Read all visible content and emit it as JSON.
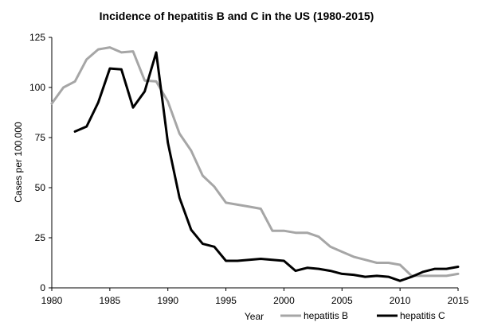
{
  "chart_data": {
    "type": "line",
    "title": "Incidence of hepatitis B and C in the US (1980-2015)",
    "xlabel": "Year",
    "ylabel": "Cases per 100,000",
    "xlim": [
      1980,
      2015
    ],
    "ylim": [
      0,
      125
    ],
    "x_ticks": [
      "1980",
      "1985",
      "1990",
      "1995",
      "2000",
      "2005",
      "2010",
      "2015"
    ],
    "y_ticks": [
      "0",
      "25",
      "50",
      "75",
      "100",
      "125"
    ],
    "grid": false,
    "legend_position": "bottom-right",
    "series": [
      {
        "name": "hepatitis B",
        "color": "#a6a6a6",
        "points": [
          [
            1980,
            92
          ],
          [
            1981,
            100
          ],
          [
            1982,
            103
          ],
          [
            1983,
            114
          ],
          [
            1984,
            119
          ],
          [
            1985,
            120
          ],
          [
            1986,
            117.5
          ],
          [
            1987,
            118
          ],
          [
            1988,
            103.5
          ],
          [
            1989,
            103
          ],
          [
            1990,
            93
          ],
          [
            1991,
            77
          ],
          [
            1992,
            68.5
          ],
          [
            1993,
            56
          ],
          [
            1994,
            50.5
          ],
          [
            1995,
            42.5
          ],
          [
            1996,
            41.5
          ],
          [
            1997,
            40.5
          ],
          [
            1998,
            39.5
          ],
          [
            1999,
            28.5
          ],
          [
            2000,
            28.5
          ],
          [
            2001,
            27.5
          ],
          [
            2002,
            27.5
          ],
          [
            2003,
            25.5
          ],
          [
            2004,
            20.5
          ],
          [
            2005,
            18
          ],
          [
            2006,
            15.5
          ],
          [
            2007,
            14
          ],
          [
            2008,
            12.5
          ],
          [
            2009,
            12.5
          ],
          [
            2010,
            11.5
          ],
          [
            2011,
            6
          ],
          [
            2012,
            6
          ],
          [
            2013,
            6
          ],
          [
            2014,
            6
          ],
          [
            2015,
            7
          ]
        ]
      },
      {
        "name": "hepatitis C",
        "color": "#000000",
        "points": [
          [
            1982,
            78
          ],
          [
            1983,
            80.5
          ],
          [
            1984,
            92.5
          ],
          [
            1985,
            109.5
          ],
          [
            1986,
            109
          ],
          [
            1987,
            90
          ],
          [
            1988,
            98
          ],
          [
            1989,
            117.5
          ],
          [
            1990,
            72.5
          ],
          [
            1991,
            45
          ],
          [
            1992,
            29
          ],
          [
            1993,
            22
          ],
          [
            1994,
            20.5
          ],
          [
            1995,
            13.5
          ],
          [
            1996,
            13.5
          ],
          [
            1997,
            14
          ],
          [
            1998,
            14.5
          ],
          [
            1999,
            14
          ],
          [
            2000,
            13.5
          ],
          [
            2001,
            8.5
          ],
          [
            2002,
            10
          ],
          [
            2003,
            9.5
          ],
          [
            2004,
            8.5
          ],
          [
            2005,
            7
          ],
          [
            2006,
            6.5
          ],
          [
            2007,
            5.5
          ],
          [
            2008,
            6
          ],
          [
            2009,
            5.5
          ],
          [
            2010,
            3.5
          ],
          [
            2011,
            5.5
          ],
          [
            2012,
            8
          ],
          [
            2013,
            9.5
          ],
          [
            2014,
            9.5
          ],
          [
            2015,
            10.5
          ]
        ]
      }
    ]
  }
}
